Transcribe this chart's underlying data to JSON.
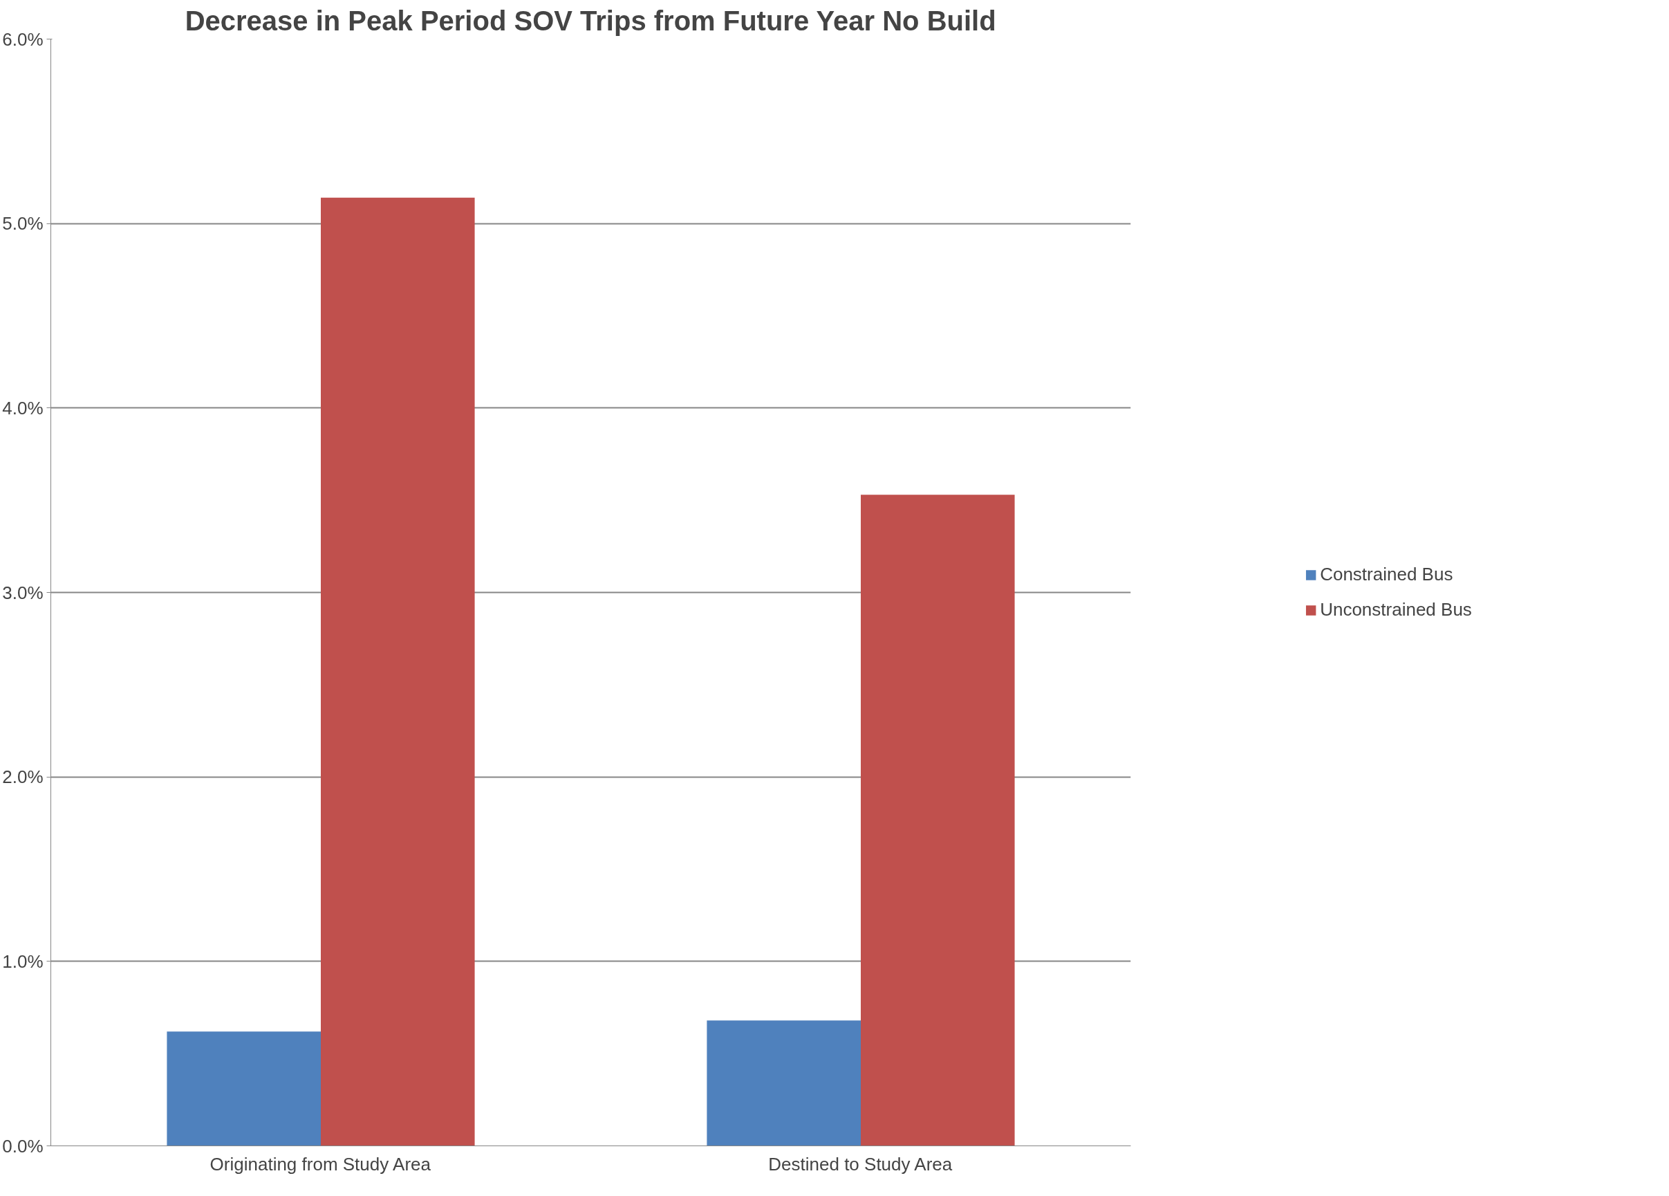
{
  "chart_data": {
    "type": "bar",
    "title": "Decrease in Peak Period SOV Trips from Future Year No Build",
    "categories": [
      "Originating from Study Area",
      "Destined to Study Area"
    ],
    "series": [
      {
        "name": "Constrained Bus",
        "color": "#4f81bd",
        "values": [
          0.62,
          0.68
        ]
      },
      {
        "name": "Unconstrained Bus",
        "color": "#c0504d",
        "values": [
          5.14,
          3.53
        ]
      }
    ],
    "ylim": [
      0,
      6
    ],
    "yticks": [
      {
        "value": 0,
        "label": "0.0%"
      },
      {
        "value": 1,
        "label": "1.0%"
      },
      {
        "value": 2,
        "label": "2.0%"
      },
      {
        "value": 3,
        "label": "3.0%"
      },
      {
        "value": 4,
        "label": "4.0%"
      },
      {
        "value": 5,
        "label": "5.0%"
      },
      {
        "value": 6,
        "label": "6.0%"
      }
    ],
    "grid": "y",
    "legend": "right"
  }
}
